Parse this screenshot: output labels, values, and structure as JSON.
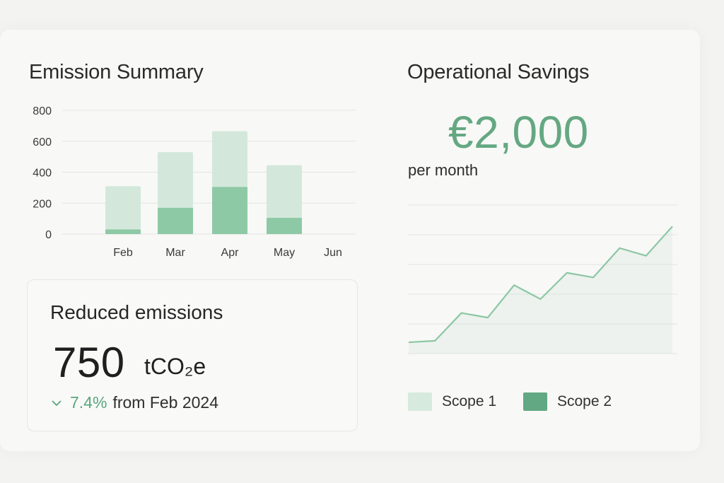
{
  "emission_summary": {
    "title": "Emission Summary"
  },
  "operational_savings": {
    "title": "Operational Savings",
    "amount": "€2,000",
    "period": "per month"
  },
  "reduced_emissions": {
    "label": "Reduced emissions",
    "value": "750",
    "unit": "tCO₂e",
    "change_pct": "7.4%",
    "change_text": "from Feb 2024",
    "change_icon": "chevron-down-icon"
  },
  "legend": {
    "items": [
      {
        "label": "Scope 1",
        "color": "#d6eadd"
      },
      {
        "label": "Scope 2",
        "color": "#62a883"
      }
    ]
  },
  "colors": {
    "accent": "#64a882",
    "scope1": "#d3e8da",
    "scope2": "#8ec9a5"
  },
  "chart_data": [
    {
      "type": "bar",
      "title": "Emission Summary",
      "categories": [
        "Feb",
        "Mar",
        "Apr",
        "May",
        "Jun"
      ],
      "series": [
        {
          "name": "Scope 1",
          "values": [
            280,
            360,
            360,
            340,
            0
          ]
        },
        {
          "name": "Scope 2",
          "values": [
            30,
            170,
            305,
            105,
            0
          ]
        }
      ],
      "stacked": true,
      "yticks": [
        0,
        200,
        400,
        600,
        800
      ],
      "ylim": [
        0,
        800
      ],
      "grid": true
    },
    {
      "type": "line",
      "title": "Operational Savings",
      "values": [
        0.05,
        0.06,
        0.24,
        0.21,
        0.42,
        0.33,
        0.5,
        0.47,
        0.66,
        0.61,
        0.8
      ],
      "ylim": [
        0,
        1
      ],
      "grid": true
    }
  ]
}
